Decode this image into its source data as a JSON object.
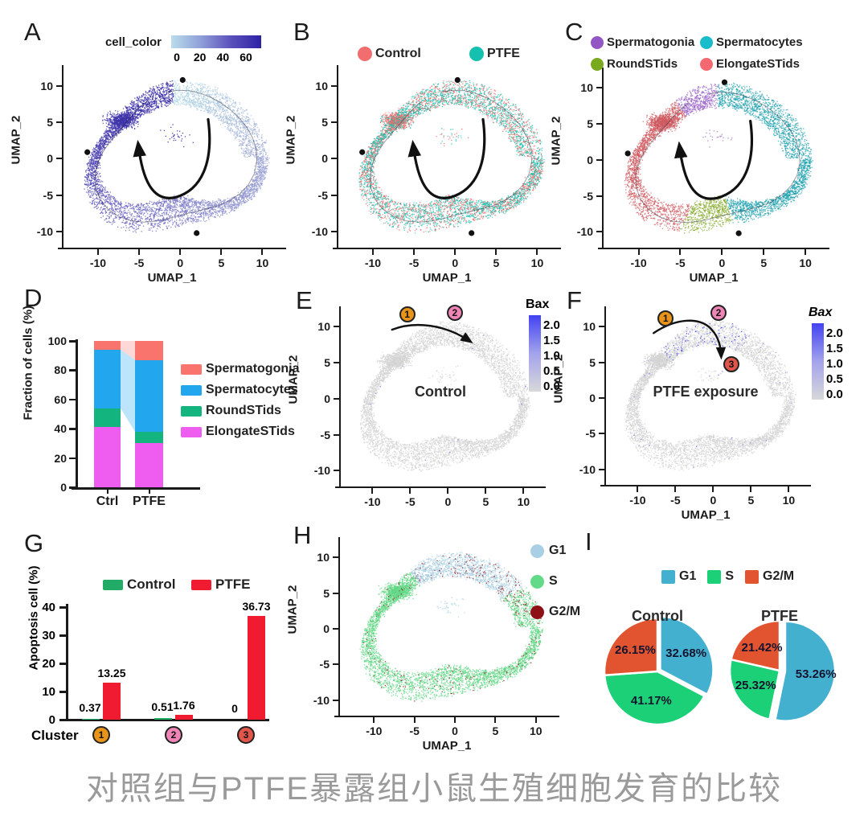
{
  "caption": {
    "text": "对照组与PTFE暴露组小鼠生殖细胞发育的比较",
    "color": "#9a9a9a"
  },
  "chart_data": [
    {
      "panel": "A",
      "type": "scatter",
      "subtype": "umap-ring",
      "xlabel": "UMAP_1",
      "ylabel": "UMAP_2",
      "xticks": [
        "-10",
        "-5",
        "0",
        "5",
        "10"
      ],
      "yticks": [
        "10",
        "5",
        "0",
        "-5",
        "-10"
      ],
      "xlim": [
        -14.3,
        12.3
      ],
      "ylim": [
        -12.2,
        12.4
      ],
      "colorbar": {
        "title": "cell_color",
        "orientation": "horizontal",
        "ticks": [
          "0",
          "20",
          "40",
          "60"
        ],
        "range": [
          0,
          60
        ],
        "stops": [
          "#b9ddea",
          "#8f9ed8",
          "#5a50bb",
          "#2d22a4"
        ]
      },
      "coloring": {
        "mode": "pseudotime",
        "stops": [
          "#b5dde8",
          "#9fa8d6",
          "#7471c4",
          "#4a3fb0",
          "#2b1fa0"
        ],
        "note": "pseudotime 0 at top arc increasing clockwise to 60 at left arc"
      },
      "arrow": {
        "points": [
          [
            3.4,
            5.4
          ],
          [
            4.1,
            -0.5
          ],
          [
            2.6,
            -4.3
          ],
          [
            -0.6,
            -5.3
          ],
          [
            -3.4,
            -6.0
          ],
          [
            -4.6,
            -2.8
          ],
          [
            -5.1,
            1.9
          ]
        ]
      },
      "branch_points": [
        {
          "x": 0.3,
          "y": 10.8
        },
        {
          "x": -11.3,
          "y": 0.9
        },
        {
          "x": 2.0,
          "y": -10.2
        }
      ]
    },
    {
      "panel": "B",
      "type": "scatter",
      "subtype": "umap-ring",
      "xlabel": "UMAP_1",
      "ylabel": "UMAP_2",
      "xticks": [
        "-10",
        "-5",
        "0",
        "5",
        "10"
      ],
      "yticks": [
        "10",
        "5",
        "0",
        "-5",
        "-10"
      ],
      "xlim": [
        -14.3,
        12.3
      ],
      "ylim": [
        -12.2,
        12.4
      ],
      "legend": [
        {
          "label": "Control",
          "color": "#f26d6d"
        },
        {
          "label": "PTFE",
          "color": "#14c0ae"
        }
      ],
      "coloring": {
        "mode": "two-group",
        "colors": [
          "#f26d6d",
          "#14c0ae"
        ],
        "fractions": [
          0.42,
          0.58
        ]
      },
      "arrow": {
        "points": [
          [
            3.4,
            5.4
          ],
          [
            4.1,
            -0.5
          ],
          [
            2.6,
            -4.3
          ],
          [
            -0.6,
            -5.3
          ],
          [
            -3.4,
            -6.0
          ],
          [
            -4.6,
            -2.8
          ],
          [
            -5.1,
            1.9
          ]
        ]
      },
      "branch_points": [
        {
          "x": 0.3,
          "y": 10.8
        },
        {
          "x": -11.3,
          "y": 0.9
        },
        {
          "x": 2.0,
          "y": -10.2
        }
      ]
    },
    {
      "panel": "C",
      "type": "scatter",
      "subtype": "umap-ring",
      "xlabel": "UMAP_1",
      "ylabel": "UMAP_2",
      "xticks": [
        "-10",
        "-5",
        "0",
        "5",
        "10"
      ],
      "yticks": [
        "10",
        "5",
        "0",
        "-5",
        "-10"
      ],
      "xlim": [
        -14.3,
        12.3
      ],
      "ylim": [
        -12.2,
        12.4
      ],
      "legend": [
        {
          "label": "Spermatogonia",
          "color": "#9257c5"
        },
        {
          "label": "Spermatocytes",
          "color": "#19bcca"
        },
        {
          "label": "RoundSTids",
          "color": "#79aa1d"
        },
        {
          "label": "ElongateSTids",
          "color": "#f4696f"
        }
      ],
      "coloring": {
        "mode": "segments",
        "segments": [
          {
            "label": "Spermatogonia",
            "from": 88,
            "to": 122,
            "color": "#9a63c8"
          },
          {
            "label": "Spermatocytes",
            "from": -76,
            "to": 88,
            "color": "#1b9fae"
          },
          {
            "label": "RoundSTids",
            "from": -114,
            "to": -76,
            "color": "#82a826"
          },
          {
            "label": "ElongateSTids",
            "from": 122,
            "to": 246,
            "color": "#cf5a60"
          }
        ]
      },
      "arrow": {
        "points": [
          [
            3.4,
            5.4
          ],
          [
            4.1,
            -0.5
          ],
          [
            2.6,
            -4.3
          ],
          [
            -0.6,
            -5.3
          ],
          [
            -3.4,
            -6.0
          ],
          [
            -4.6,
            -2.8
          ],
          [
            -5.1,
            1.9
          ]
        ]
      },
      "branch_points": [
        {
          "x": 0.3,
          "y": 10.8
        },
        {
          "x": -11.3,
          "y": 0.9
        },
        {
          "x": 2.0,
          "y": -10.2
        }
      ]
    },
    {
      "panel": "D",
      "type": "bar",
      "stacked": true,
      "ylabel": "Fraction of cells (%)",
      "ylim": [
        0,
        100
      ],
      "yticks": [
        "0",
        "20",
        "40",
        "60",
        "80",
        "100"
      ],
      "categories": [
        "Ctrl",
        "PTFE"
      ],
      "series": [
        {
          "name": "Spermatogonia",
          "color": "#f8746c",
          "values": [
            6,
            13
          ]
        },
        {
          "name": "Spermatocytes",
          "color": "#22a7ee",
          "values": [
            40,
            49
          ]
        },
        {
          "name": "RoundSTids",
          "color": "#13b47e",
          "values": [
            13,
            8
          ]
        },
        {
          "name": "ElongateSTids",
          "color": "#ef5cf0",
          "values": [
            41,
            30
          ]
        }
      ],
      "stack_order_bottom_to_top": [
        "ElongateSTids",
        "RoundSTids",
        "Spermatocytes",
        "Spermatogonia"
      ],
      "ribbons": [
        {
          "series": "Spermatocytes",
          "opacity": 0.3
        },
        {
          "series": "Spermatogonia",
          "opacity": 0.28
        }
      ]
    },
    {
      "panel": "E",
      "type": "scatter",
      "subtype": "umap-ring",
      "title": "Control",
      "xlabel": null,
      "ylabel": "UMAP_2",
      "xticks": [
        "-10",
        "-5",
        "0",
        "5",
        "10"
      ],
      "yticks": [
        "10",
        "5",
        "0",
        "-5",
        "-10"
      ],
      "xlim": [
        -14.3,
        12.3
      ],
      "ylim": [
        -12.2,
        12.4
      ],
      "colorbar": {
        "title": "Bax",
        "italic": false,
        "orientation": "vertical",
        "ticks": [
          "2.0",
          "1.5",
          "1.0",
          "0.5",
          "0.0"
        ],
        "range": [
          0,
          2
        ],
        "stops": [
          "#4242f2",
          "#a3a3ec",
          "#d8d8da"
        ]
      },
      "coloring": {
        "mode": "flat",
        "color": "#d3d3d3",
        "highlight_frac": 0.003,
        "highlight_color": "#4444e6"
      },
      "markers": [
        {
          "label": "1",
          "x": -5.4,
          "y": 11.7,
          "color": "#e8941a"
        },
        {
          "label": "2",
          "x": 0.9,
          "y": 12.0,
          "color": "#ef85b7"
        }
      ],
      "arrow": {
        "points": [
          [
            -7.4,
            9.6
          ],
          [
            -4.5,
            10.8
          ],
          [
            -0.5,
            10.4
          ],
          [
            2.9,
            8.0
          ]
        ]
      }
    },
    {
      "panel": "F",
      "type": "scatter",
      "subtype": "umap-ring",
      "title": "PTFE exposure",
      "xlabel": "UMAP_1",
      "ylabel": "UMAP_2",
      "xticks": [
        "-10",
        "-5",
        "0",
        "5",
        "10"
      ],
      "yticks": [
        "10",
        "5",
        "0",
        "-5",
        "-10"
      ],
      "xlim": [
        -14.3,
        12.3
      ],
      "ylim": [
        -12.2,
        12.4
      ],
      "colorbar": {
        "title": "Bax",
        "italic": true,
        "orientation": "vertical",
        "ticks": [
          "2.0",
          "1.5",
          "1.0",
          "0.5",
          "0.0"
        ],
        "range": [
          0,
          2
        ],
        "stops": [
          "#4242f2",
          "#a3a3ec",
          "#d8d8da"
        ]
      },
      "coloring": {
        "mode": "flat",
        "color": "#d3d3d3",
        "highlight_arc": {
          "from": 55,
          "to": 135,
          "frac": 0.12
        },
        "highlight_frac": 0.008,
        "highlight_color": "#4444e6"
      },
      "markers": [
        {
          "label": "1",
          "x": -6.3,
          "y": 11.2,
          "color": "#e8941a"
        },
        {
          "label": "2",
          "x": 0.7,
          "y": 12.0,
          "color": "#ef85b7"
        },
        {
          "label": "3",
          "x": 2.4,
          "y": 4.7,
          "color": "#e2554a"
        }
      ],
      "arrow": {
        "points": [
          [
            -7.9,
            9.1
          ],
          [
            -4.8,
            11.3
          ],
          [
            -2.0,
            11.2
          ],
          [
            -0.6,
            10.0
          ],
          [
            0.5,
            9.0
          ],
          [
            1.0,
            7.6
          ],
          [
            1.05,
            5.9
          ]
        ]
      }
    },
    {
      "panel": "G",
      "type": "bar",
      "grouped": true,
      "ylabel": "Apoptosis cell (%)",
      "ylim": [
        0,
        40
      ],
      "yticks": [
        "0",
        "10",
        "20",
        "30",
        "40"
      ],
      "xlabel_prefix": "Cluster",
      "legend": [
        {
          "label": "Control",
          "color": "#21ab66"
        },
        {
          "label": "PTFE",
          "color": "#f01a31"
        }
      ],
      "clusters": [
        {
          "marker": "1",
          "marker_color": "#e8941a",
          "control": 0.37,
          "ptfe": 13.25,
          "labels": [
            "0.37",
            "13.25"
          ]
        },
        {
          "marker": "2",
          "marker_color": "#ef85b7",
          "control": 0.51,
          "ptfe": 1.76,
          "labels": [
            "0.51",
            "1.76"
          ]
        },
        {
          "marker": "3",
          "marker_color": "#e2554a",
          "control": 0,
          "ptfe": 36.73,
          "labels": [
            "0",
            "36.73"
          ]
        }
      ]
    },
    {
      "panel": "H",
      "type": "scatter",
      "subtype": "umap-ring",
      "xlabel": "UMAP_1",
      "ylabel": "UMAP_2",
      "xticks": [
        "-10",
        "-5",
        "0",
        "5",
        "10"
      ],
      "yticks": [
        "10",
        "5",
        "0",
        "-5",
        "-10"
      ],
      "xlim": [
        -14.3,
        12.3
      ],
      "ylim": [
        -12.2,
        12.4
      ],
      "legend": [
        {
          "label": "G1",
          "color": "#a9cfe4"
        },
        {
          "label": "S",
          "color": "#63da87"
        },
        {
          "label": "G2/M",
          "color": "#8e1016"
        }
      ],
      "coloring": {
        "mode": "cellcycle",
        "arc_g1": {
          "from": 30,
          "to": 122,
          "color": "#a9cfe4"
        },
        "else_color": "#63da87",
        "speckle": {
          "color": "#8e1016",
          "frac_hot": 0.13,
          "hot_from": 10,
          "hot_to": 85,
          "frac": 0.05
        }
      }
    },
    {
      "panel": "I",
      "type": "pie",
      "legend": [
        {
          "label": "G1",
          "color": "#44b0d0"
        },
        {
          "label": "S",
          "color": "#1cd077"
        },
        {
          "label": "G2/M",
          "color": "#e25430"
        }
      ],
      "pies": [
        {
          "title": "Control",
          "explode": "G1",
          "slices": [
            {
              "label": "G1",
              "value": 32.68,
              "text": "32.68%",
              "color": "#44b0d0"
            },
            {
              "label": "S",
              "value": 41.17,
              "text": "41.17%",
              "color": "#1cd077"
            },
            {
              "label": "G2/M",
              "value": 26.15,
              "text": "26.15%",
              "color": "#e25430"
            }
          ]
        },
        {
          "title": "PTFE",
          "explode": "G1",
          "slices": [
            {
              "label": "G1",
              "value": 53.26,
              "text": "53.26%",
              "color": "#44b0d0"
            },
            {
              "label": "S",
              "value": 25.32,
              "text": "25.32%",
              "color": "#1cd077"
            },
            {
              "label": "G2/M",
              "value": 21.42,
              "text": "21.42%",
              "color": "#e25430"
            }
          ]
        }
      ]
    }
  ]
}
